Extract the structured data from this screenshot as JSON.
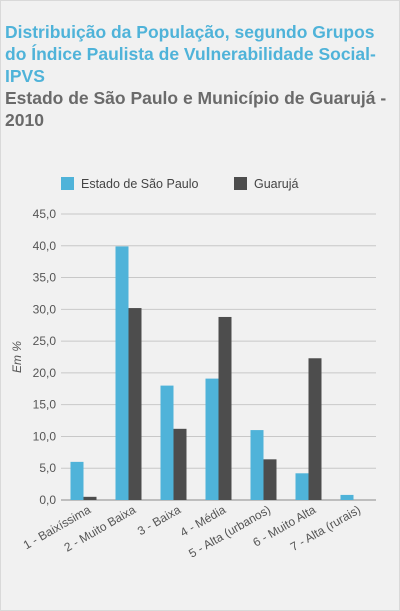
{
  "title": "Distribuição da População, segundo Grupos do Índice Paulista de Vulnerabilidade Social-IPVS",
  "subtitle": "Estado de São Paulo e Município de Guarujá - 2010",
  "chart_data": {
    "type": "bar",
    "categories": [
      "1 - Baixíssima",
      "2 - Muito Baixa",
      "3 - Baixa",
      "4 - Média",
      "5 - Alta (urbanos)",
      "6 - Muito Alta",
      "7 - Alta (rurais)"
    ],
    "series": [
      {
        "name": "Estado de São Paulo",
        "values": [
          6.0,
          39.9,
          18.0,
          19.1,
          11.0,
          4.2,
          0.8
        ]
      },
      {
        "name": "Guarujá",
        "values": [
          0.5,
          30.2,
          11.2,
          28.8,
          6.4,
          22.3,
          0.0
        ]
      }
    ],
    "ylabel": "Em %",
    "ylim": [
      0,
      45
    ],
    "yticks": [
      "0,0",
      "5,0",
      "10,0",
      "15,0",
      "20,0",
      "25,0",
      "30,0",
      "35,0",
      "40,0",
      "45,0"
    ],
    "grid": true,
    "legend_position": "top",
    "colors": {
      "Estado de São Paulo": "#4fb3d9",
      "Guarujá": "#4d4d4d"
    }
  }
}
